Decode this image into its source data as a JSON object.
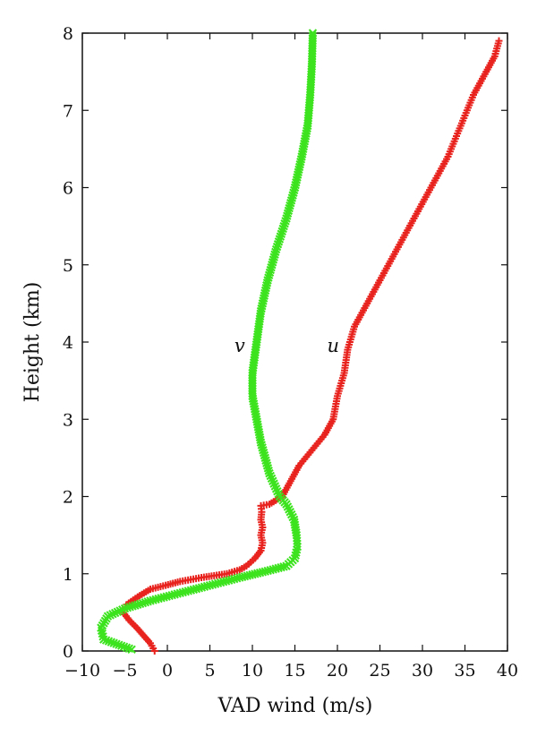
{
  "chart_data": {
    "type": "scatter",
    "xlabel": "VAD wind (m/s)",
    "ylabel": "Height (km)",
    "xlim": [
      -10,
      40
    ],
    "ylim": [
      0,
      8
    ],
    "xticks": [
      "−10",
      "−5",
      "0",
      "5",
      "10",
      "15",
      "20",
      "25",
      "30",
      "35",
      "40"
    ],
    "yticks": [
      "0",
      "1",
      "2",
      "3",
      "4",
      "5",
      "6",
      "7",
      "8"
    ],
    "grid": false,
    "series": [
      {
        "name": "u",
        "color": "#e8231e",
        "marker": "plus",
        "points": [
          [
            -1.5,
            0.0
          ],
          [
            -2.0,
            0.1
          ],
          [
            -2.8,
            0.2
          ],
          [
            -3.6,
            0.3
          ],
          [
            -4.5,
            0.4
          ],
          [
            -5.2,
            0.5
          ],
          [
            -4.8,
            0.6
          ],
          [
            -3.5,
            0.7
          ],
          [
            -2.0,
            0.8
          ],
          [
            -0.2,
            0.85
          ],
          [
            1.5,
            0.9
          ],
          [
            4.0,
            0.95
          ],
          [
            7.0,
            1.0
          ],
          [
            8.5,
            1.05
          ],
          [
            9.3,
            1.1
          ],
          [
            10.3,
            1.2
          ],
          [
            11.0,
            1.3
          ],
          [
            11.2,
            1.4
          ],
          [
            11.0,
            1.5
          ],
          [
            11.2,
            1.6
          ],
          [
            11.0,
            1.7
          ],
          [
            11.1,
            1.8
          ],
          [
            11.0,
            1.88
          ],
          [
            12.0,
            1.9
          ],
          [
            13.5,
            2.0
          ],
          [
            14.5,
            2.2
          ],
          [
            15.5,
            2.4
          ],
          [
            17.0,
            2.6
          ],
          [
            18.5,
            2.8
          ],
          [
            19.5,
            3.0
          ],
          [
            20.0,
            3.3
          ],
          [
            20.8,
            3.6
          ],
          [
            21.2,
            3.9
          ],
          [
            22.0,
            4.2
          ],
          [
            23.5,
            4.5
          ],
          [
            25.0,
            4.8
          ],
          [
            27.0,
            5.2
          ],
          [
            29.0,
            5.6
          ],
          [
            31.0,
            6.0
          ],
          [
            33.0,
            6.4
          ],
          [
            34.5,
            6.8
          ],
          [
            36.0,
            7.2
          ],
          [
            37.5,
            7.5
          ],
          [
            38.5,
            7.7
          ],
          [
            39.0,
            7.9
          ]
        ]
      },
      {
        "name": "v",
        "color": "#3ce31e",
        "marker": "cross",
        "points": [
          [
            -4.2,
            0.02
          ],
          [
            -7.5,
            0.15
          ],
          [
            -7.8,
            0.3
          ],
          [
            -7.0,
            0.45
          ],
          [
            -5.0,
            0.55
          ],
          [
            -2.0,
            0.65
          ],
          [
            1.5,
            0.75
          ],
          [
            5.0,
            0.85
          ],
          [
            8.5,
            0.95
          ],
          [
            11.5,
            1.03
          ],
          [
            14.0,
            1.1
          ],
          [
            15.0,
            1.2
          ],
          [
            15.3,
            1.35
          ],
          [
            15.2,
            1.5
          ],
          [
            14.9,
            1.7
          ],
          [
            14.0,
            1.9
          ],
          [
            13.2,
            2.0
          ],
          [
            12.0,
            2.3
          ],
          [
            11.0,
            2.7
          ],
          [
            10.5,
            3.0
          ],
          [
            10.0,
            3.3
          ],
          [
            10.0,
            3.6
          ],
          [
            10.5,
            4.0
          ],
          [
            11.0,
            4.4
          ],
          [
            11.8,
            4.8
          ],
          [
            12.8,
            5.2
          ],
          [
            14.0,
            5.6
          ],
          [
            15.0,
            6.0
          ],
          [
            15.8,
            6.4
          ],
          [
            16.5,
            6.8
          ],
          [
            16.8,
            7.2
          ],
          [
            17.0,
            7.6
          ],
          [
            17.1,
            8.0
          ]
        ]
      }
    ],
    "annotations": [
      {
        "text": "v",
        "x": 8.5,
        "y": 3.87
      },
      {
        "text": "u",
        "x": 19.5,
        "y": 3.87
      }
    ]
  }
}
